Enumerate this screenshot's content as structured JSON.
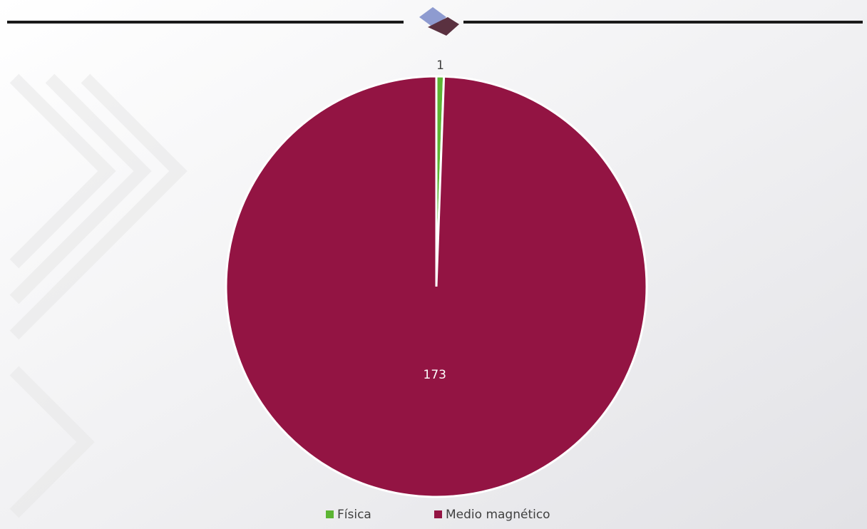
{
  "chart_data": {
    "type": "pie",
    "categories": [
      "Física",
      "Medio magnético"
    ],
    "values": [
      1,
      173
    ],
    "colors": [
      "#5cb533",
      "#931443"
    ],
    "legend": "bottom"
  }
}
